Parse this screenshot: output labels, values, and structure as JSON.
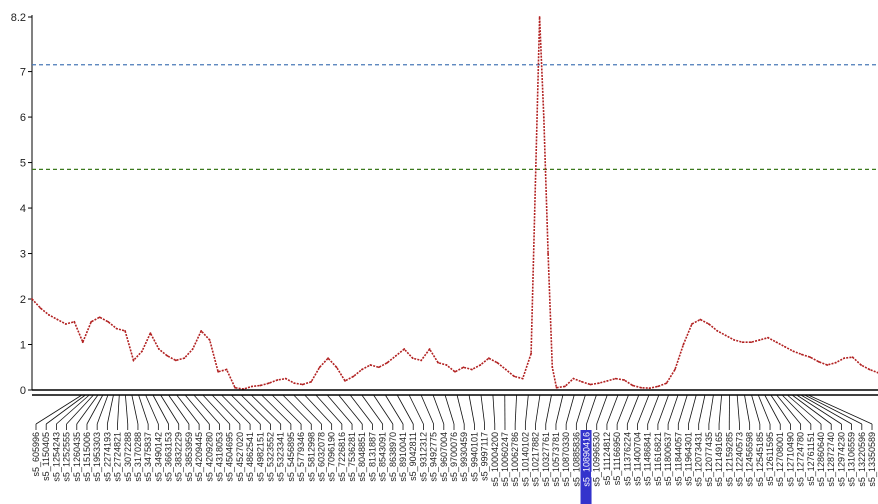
{
  "chart_data": {
    "type": "line",
    "title": "",
    "xlabel": "",
    "ylabel": "",
    "ylim": [
      0,
      8.2
    ],
    "y_ticks": [
      "0",
      "1",
      "2",
      "3",
      "4",
      "5",
      "6",
      "7",
      "8.2"
    ],
    "y_tick_values": [
      0,
      1,
      2,
      3,
      4,
      5,
      6,
      7,
      8.2
    ],
    "grid": false,
    "colors": {
      "line": "#b22222",
      "threshold_upper": "#4a7ab8",
      "threshold_lower": "#3c7a1e",
      "axis": "#000000",
      "highlight": "#3333cc"
    },
    "thresholds": [
      {
        "value": 7.15,
        "style": "dashed",
        "color": "#4a7ab8"
      },
      {
        "value": 4.85,
        "style": "dashed",
        "color": "#3c7a1e"
      }
    ],
    "x_range": [
      0,
      100
    ],
    "series": [
      {
        "x": [
          0,
          1,
          2,
          3,
          4,
          5,
          6,
          7,
          8,
          9,
          10,
          11,
          12,
          13,
          14,
          15,
          16,
          17,
          18,
          19,
          20,
          21,
          22,
          23,
          24,
          25,
          26,
          27,
          28,
          29,
          30,
          31,
          32,
          33,
          34,
          35,
          36,
          37,
          38,
          39,
          40,
          41,
          42,
          43,
          44,
          45,
          46,
          47,
          48,
          49,
          50,
          51,
          52,
          53,
          54,
          55,
          56,
          57,
          58,
          59,
          60,
          60.5,
          61,
          61.5,
          62,
          63,
          64,
          65,
          66,
          67,
          68,
          69,
          70,
          71,
          72,
          73,
          74,
          75,
          76,
          77,
          78,
          79,
          80,
          81,
          82,
          83,
          84,
          85,
          86,
          87,
          88,
          89,
          90,
          91,
          92,
          93,
          94,
          95,
          96,
          97,
          98,
          99,
          100
        ],
        "values": [
          2.0,
          1.8,
          1.65,
          1.55,
          1.45,
          1.5,
          1.05,
          1.5,
          1.6,
          1.5,
          1.35,
          1.3,
          0.65,
          0.85,
          1.25,
          0.9,
          0.75,
          0.65,
          0.7,
          0.9,
          1.3,
          1.1,
          0.4,
          0.45,
          0.05,
          0.02,
          0.08,
          0.1,
          0.15,
          0.22,
          0.25,
          0.15,
          0.12,
          0.18,
          0.5,
          0.7,
          0.5,
          0.2,
          0.3,
          0.45,
          0.55,
          0.5,
          0.6,
          0.75,
          0.9,
          0.7,
          0.65,
          0.9,
          0.6,
          0.55,
          0.4,
          0.5,
          0.45,
          0.55,
          0.7,
          0.6,
          0.45,
          0.3,
          0.25,
          0.8,
          8.2,
          6.0,
          3.0,
          0.5,
          0.05,
          0.08,
          0.25,
          0.18,
          0.12,
          0.15,
          0.2,
          0.25,
          0.22,
          0.1,
          0.05,
          0.04,
          0.08,
          0.15,
          0.45,
          1.0,
          1.45,
          1.55,
          1.45,
          1.3,
          1.2,
          1.1,
          1.05,
          1.05,
          1.1,
          1.15,
          1.05,
          0.95,
          0.85,
          0.78,
          0.72,
          0.62,
          0.55,
          0.6,
          0.7,
          0.72,
          0.55,
          0.45,
          0.38
        ]
      }
    ],
    "marker_labels": [
      "s5_605996",
      "s5_1150405",
      "s5_1254243",
      "s5_1252555",
      "s5_1260435",
      "s5_1515006",
      "s5_1953303",
      "s5_2274193",
      "s5_2724821",
      "s5_3072288",
      "s5_3170288",
      "s5_3475837",
      "s5_3490142",
      "s5_3663153",
      "s5_3832229",
      "s5_3853959",
      "s5_4209445",
      "s5_4209280",
      "s5_4318053",
      "s5_4504695",
      "s5_4527020",
      "s5_4862541",
      "s5_4982151",
      "s5_5323552",
      "s5_5323341",
      "s5_5456895",
      "s5_5779346",
      "s5_5812998",
      "s5_6032078",
      "s5_7096190",
      "s5_7226816",
      "s5_7536281",
      "s5_8048851",
      "s5_8131887",
      "s5_8543091",
      "s5_8638970",
      "s5_8910041",
      "s5_9042811",
      "s5_9312312",
      "s5_9492775",
      "s5_9607004",
      "s5_9700076",
      "s5_9930459",
      "s5_9940101",
      "s5_9997117",
      "s5_10004200",
      "s5_10060247",
      "s5_10062786",
      "s5_10140102",
      "s5_10217882",
      "s5_10327761",
      "s5_10573781",
      "s5_10870330",
      "s5_10885836",
      "s5_10890416",
      "s5_10996530",
      "s5_11124812",
      "s5_11166950",
      "s5_11376224",
      "s5_11400704",
      "s5_11486841",
      "s5_11616821",
      "s5_11800637",
      "s5_11844057",
      "s5_11964301",
      "s5_12073431",
      "s5_12077435",
      "s5_12149165",
      "s5_12159285",
      "s5_12240573",
      "s5_12456598",
      "s5_12545185",
      "s5_12611595",
      "s5_12708001",
      "s5_12710490",
      "s5_12724780",
      "s5_12761151",
      "s5_12860640",
      "s5_12872740",
      "s5_12974230",
      "s5_13106559",
      "s5_13220596",
      "s5_13350589"
    ],
    "highlighted_label": "s5_10890416"
  }
}
